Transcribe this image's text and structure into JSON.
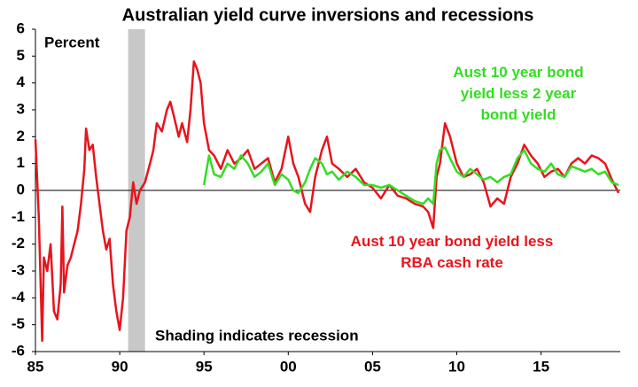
{
  "chart_data": {
    "type": "line",
    "title": "Australian yield curve inversions and recessions",
    "y_label": "Percent",
    "annotation": "Shading indicates recession",
    "shaded_region": {
      "x": [
        1990.5,
        1991.5
      ],
      "color": "#c8c8c8"
    },
    "xlim": [
      1985,
      2019.7
    ],
    "ylim": [
      -6,
      6
    ],
    "xticks": [
      {
        "value": 1985,
        "label": "85"
      },
      {
        "value": 1990,
        "label": "90"
      },
      {
        "value": 1995,
        "label": "95"
      },
      {
        "value": 2000,
        "label": "00"
      },
      {
        "value": 2005,
        "label": "05"
      },
      {
        "value": 2010,
        "label": "10"
      },
      {
        "value": 2015,
        "label": "15"
      }
    ],
    "yticks": [
      6,
      5,
      4,
      3,
      2,
      1,
      0,
      -1,
      -2,
      -3,
      -4,
      -5,
      -6
    ],
    "series": [
      {
        "name": "Aust 10 year bond yield less RBA cash rate",
        "color": "#e8141c",
        "x": [
          1985.0,
          1985.2,
          1985.4,
          1985.5,
          1985.7,
          1985.9,
          1986.1,
          1986.3,
          1986.5,
          1986.6,
          1986.7,
          1986.9,
          1987.1,
          1987.3,
          1987.5,
          1987.7,
          1987.9,
          1988.0,
          1988.2,
          1988.4,
          1988.6,
          1988.8,
          1989.0,
          1989.2,
          1989.4,
          1989.6,
          1989.8,
          1990.0,
          1990.2,
          1990.4,
          1990.6,
          1990.8,
          1991.0,
          1991.2,
          1991.5,
          1991.8,
          1992.0,
          1992.2,
          1992.5,
          1992.8,
          1993.0,
          1993.2,
          1993.5,
          1993.7,
          1994.0,
          1994.2,
          1994.4,
          1994.6,
          1994.8,
          1995.0,
          1995.3,
          1995.6,
          1996.0,
          1996.4,
          1996.8,
          1997.2,
          1997.6,
          1998.0,
          1998.4,
          1998.8,
          1999.2,
          1999.6,
          2000.0,
          2000.3,
          2000.6,
          2001.0,
          2001.3,
          2001.6,
          2002.0,
          2002.3,
          2002.6,
          2003.0,
          2003.5,
          2004.0,
          2004.5,
          2005.0,
          2005.5,
          2006.0,
          2006.5,
          2007.0,
          2007.5,
          2008.0,
          2008.3,
          2008.6,
          2008.8,
          2009.0,
          2009.3,
          2009.6,
          2010.0,
          2010.4,
          2010.8,
          2011.2,
          2011.6,
          2012.0,
          2012.4,
          2012.8,
          2013.2,
          2013.6,
          2014.0,
          2014.4,
          2014.8,
          2015.2,
          2015.6,
          2016.0,
          2016.4,
          2016.8,
          2017.2,
          2017.6,
          2018.0,
          2018.4,
          2018.8,
          2019.2,
          2019.6
        ],
        "values": [
          1.9,
          -1.0,
          -5.6,
          -2.5,
          -3.0,
          -2.0,
          -4.5,
          -4.8,
          -3.5,
          -0.6,
          -3.8,
          -2.8,
          -2.5,
          -2.0,
          -1.5,
          -0.5,
          0.8,
          2.3,
          1.5,
          1.7,
          0.5,
          -0.5,
          -1.5,
          -2.2,
          -1.8,
          -3.5,
          -4.5,
          -5.2,
          -4.0,
          -1.5,
          -1.0,
          0.3,
          -0.5,
          0.0,
          0.3,
          1.0,
          1.5,
          2.5,
          2.2,
          3.0,
          3.3,
          2.8,
          2.0,
          2.5,
          1.8,
          3.0,
          4.8,
          4.5,
          4.0,
          2.5,
          1.5,
          1.3,
          0.8,
          1.5,
          1.0,
          1.2,
          1.5,
          0.8,
          1.0,
          1.2,
          0.3,
          0.8,
          2.0,
          1.0,
          0.5,
          -0.5,
          -0.8,
          0.5,
          1.5,
          2.0,
          1.0,
          0.8,
          0.5,
          0.8,
          0.3,
          0.1,
          -0.3,
          0.2,
          -0.2,
          -0.3,
          -0.5,
          -0.6,
          -0.8,
          -1.4,
          0.5,
          1.0,
          2.5,
          2.0,
          1.0,
          0.5,
          0.6,
          0.8,
          0.3,
          -0.6,
          -0.3,
          -0.5,
          0.5,
          1.0,
          1.7,
          1.3,
          1.0,
          0.5,
          0.7,
          0.8,
          0.5,
          1.0,
          1.2,
          1.0,
          1.3,
          1.2,
          1.0,
          0.4,
          -0.1
        ]
      },
      {
        "name": "Aust 10 year bond yield less 2 year bond yield",
        "color": "#33dd22",
        "x": [
          1995.0,
          1995.3,
          1995.6,
          1996.0,
          1996.4,
          1996.8,
          1997.2,
          1997.6,
          1998.0,
          1998.4,
          1998.8,
          1999.2,
          1999.6,
          2000.0,
          2000.3,
          2000.6,
          2001.0,
          2001.3,
          2001.6,
          2002.0,
          2002.3,
          2002.6,
          2003.0,
          2003.5,
          2004.0,
          2004.5,
          2005.0,
          2005.5,
          2006.0,
          2006.5,
          2007.0,
          2007.5,
          2008.0,
          2008.3,
          2008.6,
          2008.8,
          2009.0,
          2009.3,
          2009.6,
          2010.0,
          2010.4,
          2010.8,
          2011.2,
          2011.6,
          2012.0,
          2012.4,
          2012.8,
          2013.2,
          2013.6,
          2014.0,
          2014.4,
          2014.8,
          2015.2,
          2015.6,
          2016.0,
          2016.4,
          2016.8,
          2017.2,
          2017.6,
          2018.0,
          2018.4,
          2018.8,
          2019.2,
          2019.6
        ],
        "values": [
          0.2,
          1.3,
          0.6,
          0.5,
          1.0,
          0.8,
          1.3,
          1.0,
          0.5,
          0.7,
          1.0,
          0.2,
          0.6,
          0.4,
          0.0,
          -0.1,
          0.3,
          0.8,
          1.2,
          1.0,
          0.6,
          0.7,
          0.4,
          0.7,
          0.5,
          0.2,
          0.2,
          0.1,
          0.2,
          0.0,
          -0.2,
          -0.4,
          -0.5,
          -0.3,
          -0.5,
          1.0,
          1.5,
          1.6,
          1.2,
          0.7,
          0.5,
          0.8,
          0.6,
          0.4,
          0.5,
          0.3,
          0.5,
          0.6,
          1.2,
          1.5,
          1.0,
          0.8,
          0.7,
          1.0,
          0.6,
          0.5,
          0.9,
          0.8,
          0.7,
          0.8,
          0.6,
          0.7,
          0.3,
          0.2
        ]
      }
    ]
  }
}
